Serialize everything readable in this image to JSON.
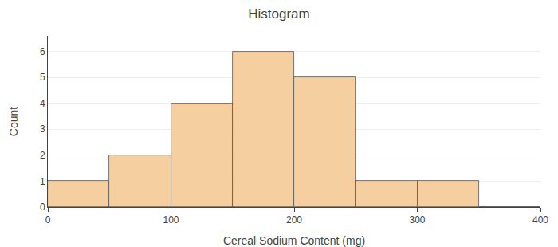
{
  "chart_data": {
    "type": "histogram",
    "title": "Histogram",
    "xlabel": "Cereal Sodium Content (mg)",
    "ylabel": "Count",
    "bins": [
      0,
      50,
      100,
      150,
      200,
      250,
      300,
      350,
      400
    ],
    "values": [
      1,
      2,
      4,
      6,
      5,
      1,
      1,
      0
    ],
    "color": "#F5CFA0",
    "xlim": [
      0,
      400
    ],
    "ylim": [
      0,
      6.6
    ],
    "xticks": [
      0,
      100,
      200,
      300,
      400
    ],
    "yticks": [
      0,
      1,
      2,
      3,
      4,
      5,
      6
    ],
    "grid": true
  }
}
